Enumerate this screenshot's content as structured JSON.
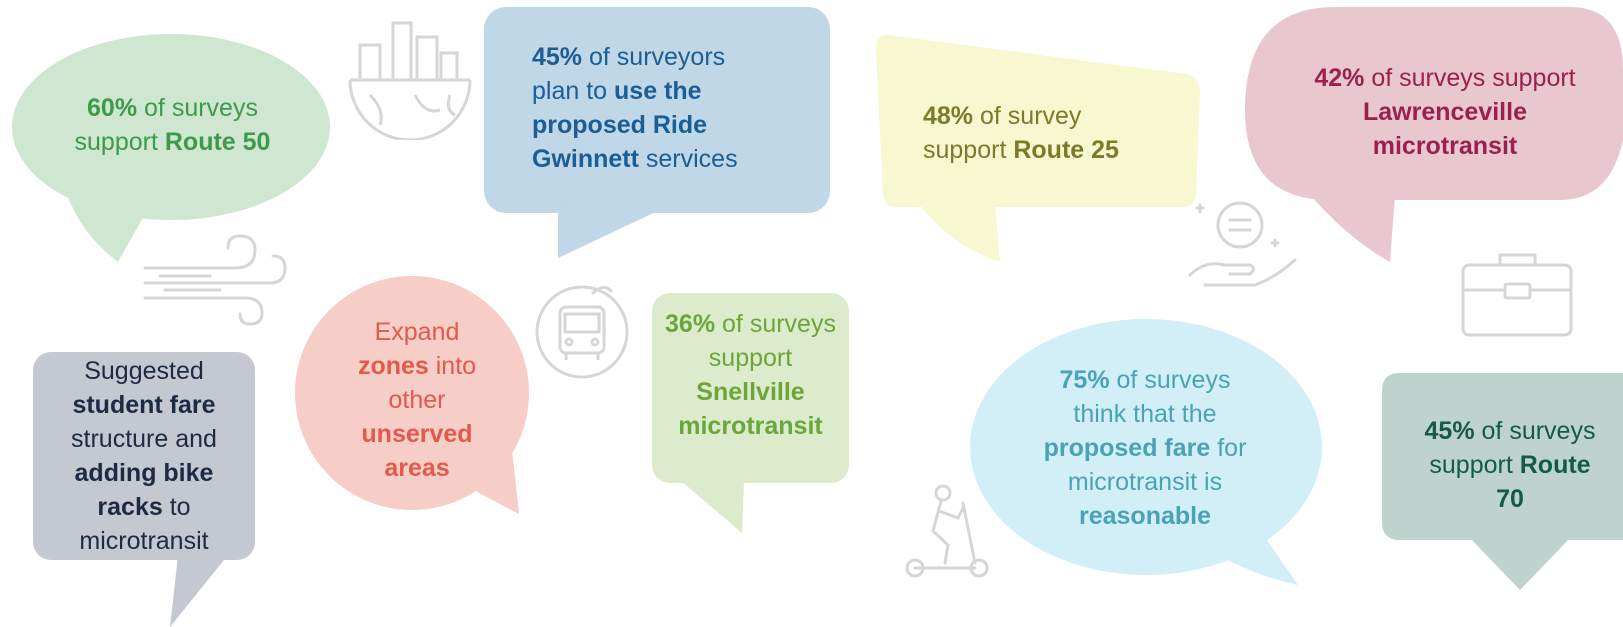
{
  "colors": {
    "green": "#3e9a4a",
    "green_bg": "#cfe6d1",
    "blue": "#1b5d96",
    "blue_bg": "#bfd7e6",
    "olive": "#7d7a2a",
    "olive_bg": "#f7f7d0",
    "maroon": "#9b1f4f",
    "maroon_bg": "#e8c8ce",
    "navy": "#1d2a44",
    "gray_bg": "#c3c8d1",
    "coral": "#e25a4a",
    "coral_bg": "#f7cdc8",
    "lime": "#6aa63a",
    "lime_bg": "#dcebcb",
    "teal": "#4aa3b5",
    "teal_bg": "#d2eef6",
    "darkgreen": "#155a45",
    "sage_bg": "#bed3cd"
  },
  "icons": [
    "city-globe-icon",
    "wind-icon",
    "bus-icon",
    "hand-coin-icon",
    "briefcase-icon",
    "scooter-icon"
  ],
  "bubbles": {
    "route50": {
      "t1": "60%",
      "t2": " of surveys",
      "t3": "support ",
      "t4": "Route 50"
    },
    "ride_gwinnett": {
      "t1": "45%",
      "t2": " of surveyors",
      "t3": "plan to ",
      "t4": "use the",
      "t5": "proposed Ride",
      "t6": "Gwinnett",
      "t7": " services"
    },
    "route25": {
      "t1": "48%",
      "t2": " of survey",
      "t3": "support ",
      "t4": "Route 25"
    },
    "lawrenceville": {
      "t1": "42%",
      "t2": " of surveys support",
      "t3": "Lawrenceville",
      "t4": "microtransit"
    },
    "student_fare": {
      "t1": "Suggested",
      "t2": "student fare",
      "t3": "structure and",
      "t4": "adding bike",
      "t5": "racks",
      "t6": " to",
      "t7": "microtransit"
    },
    "expand_zones": {
      "t1": "Expand",
      "t2": "zones",
      "t3": " into",
      "t4": "other",
      "t5": "unserved",
      "t6": "areas"
    },
    "snellville": {
      "t1": "36%",
      "t2": " of surveys",
      "t3": "support",
      "t4": "Snellville",
      "t5": "microtransit"
    },
    "fare_reasonable": {
      "t1": "75%",
      "t2": " of surveys",
      "t3": "think that the",
      "t4": "proposed fare",
      "t5": " for",
      "t6": "microtransit is",
      "t7": "reasonable"
    },
    "route70": {
      "t1": "45%",
      "t2": " of surveys",
      "t3": "support ",
      "t4": "Route",
      "t5": "70"
    }
  }
}
